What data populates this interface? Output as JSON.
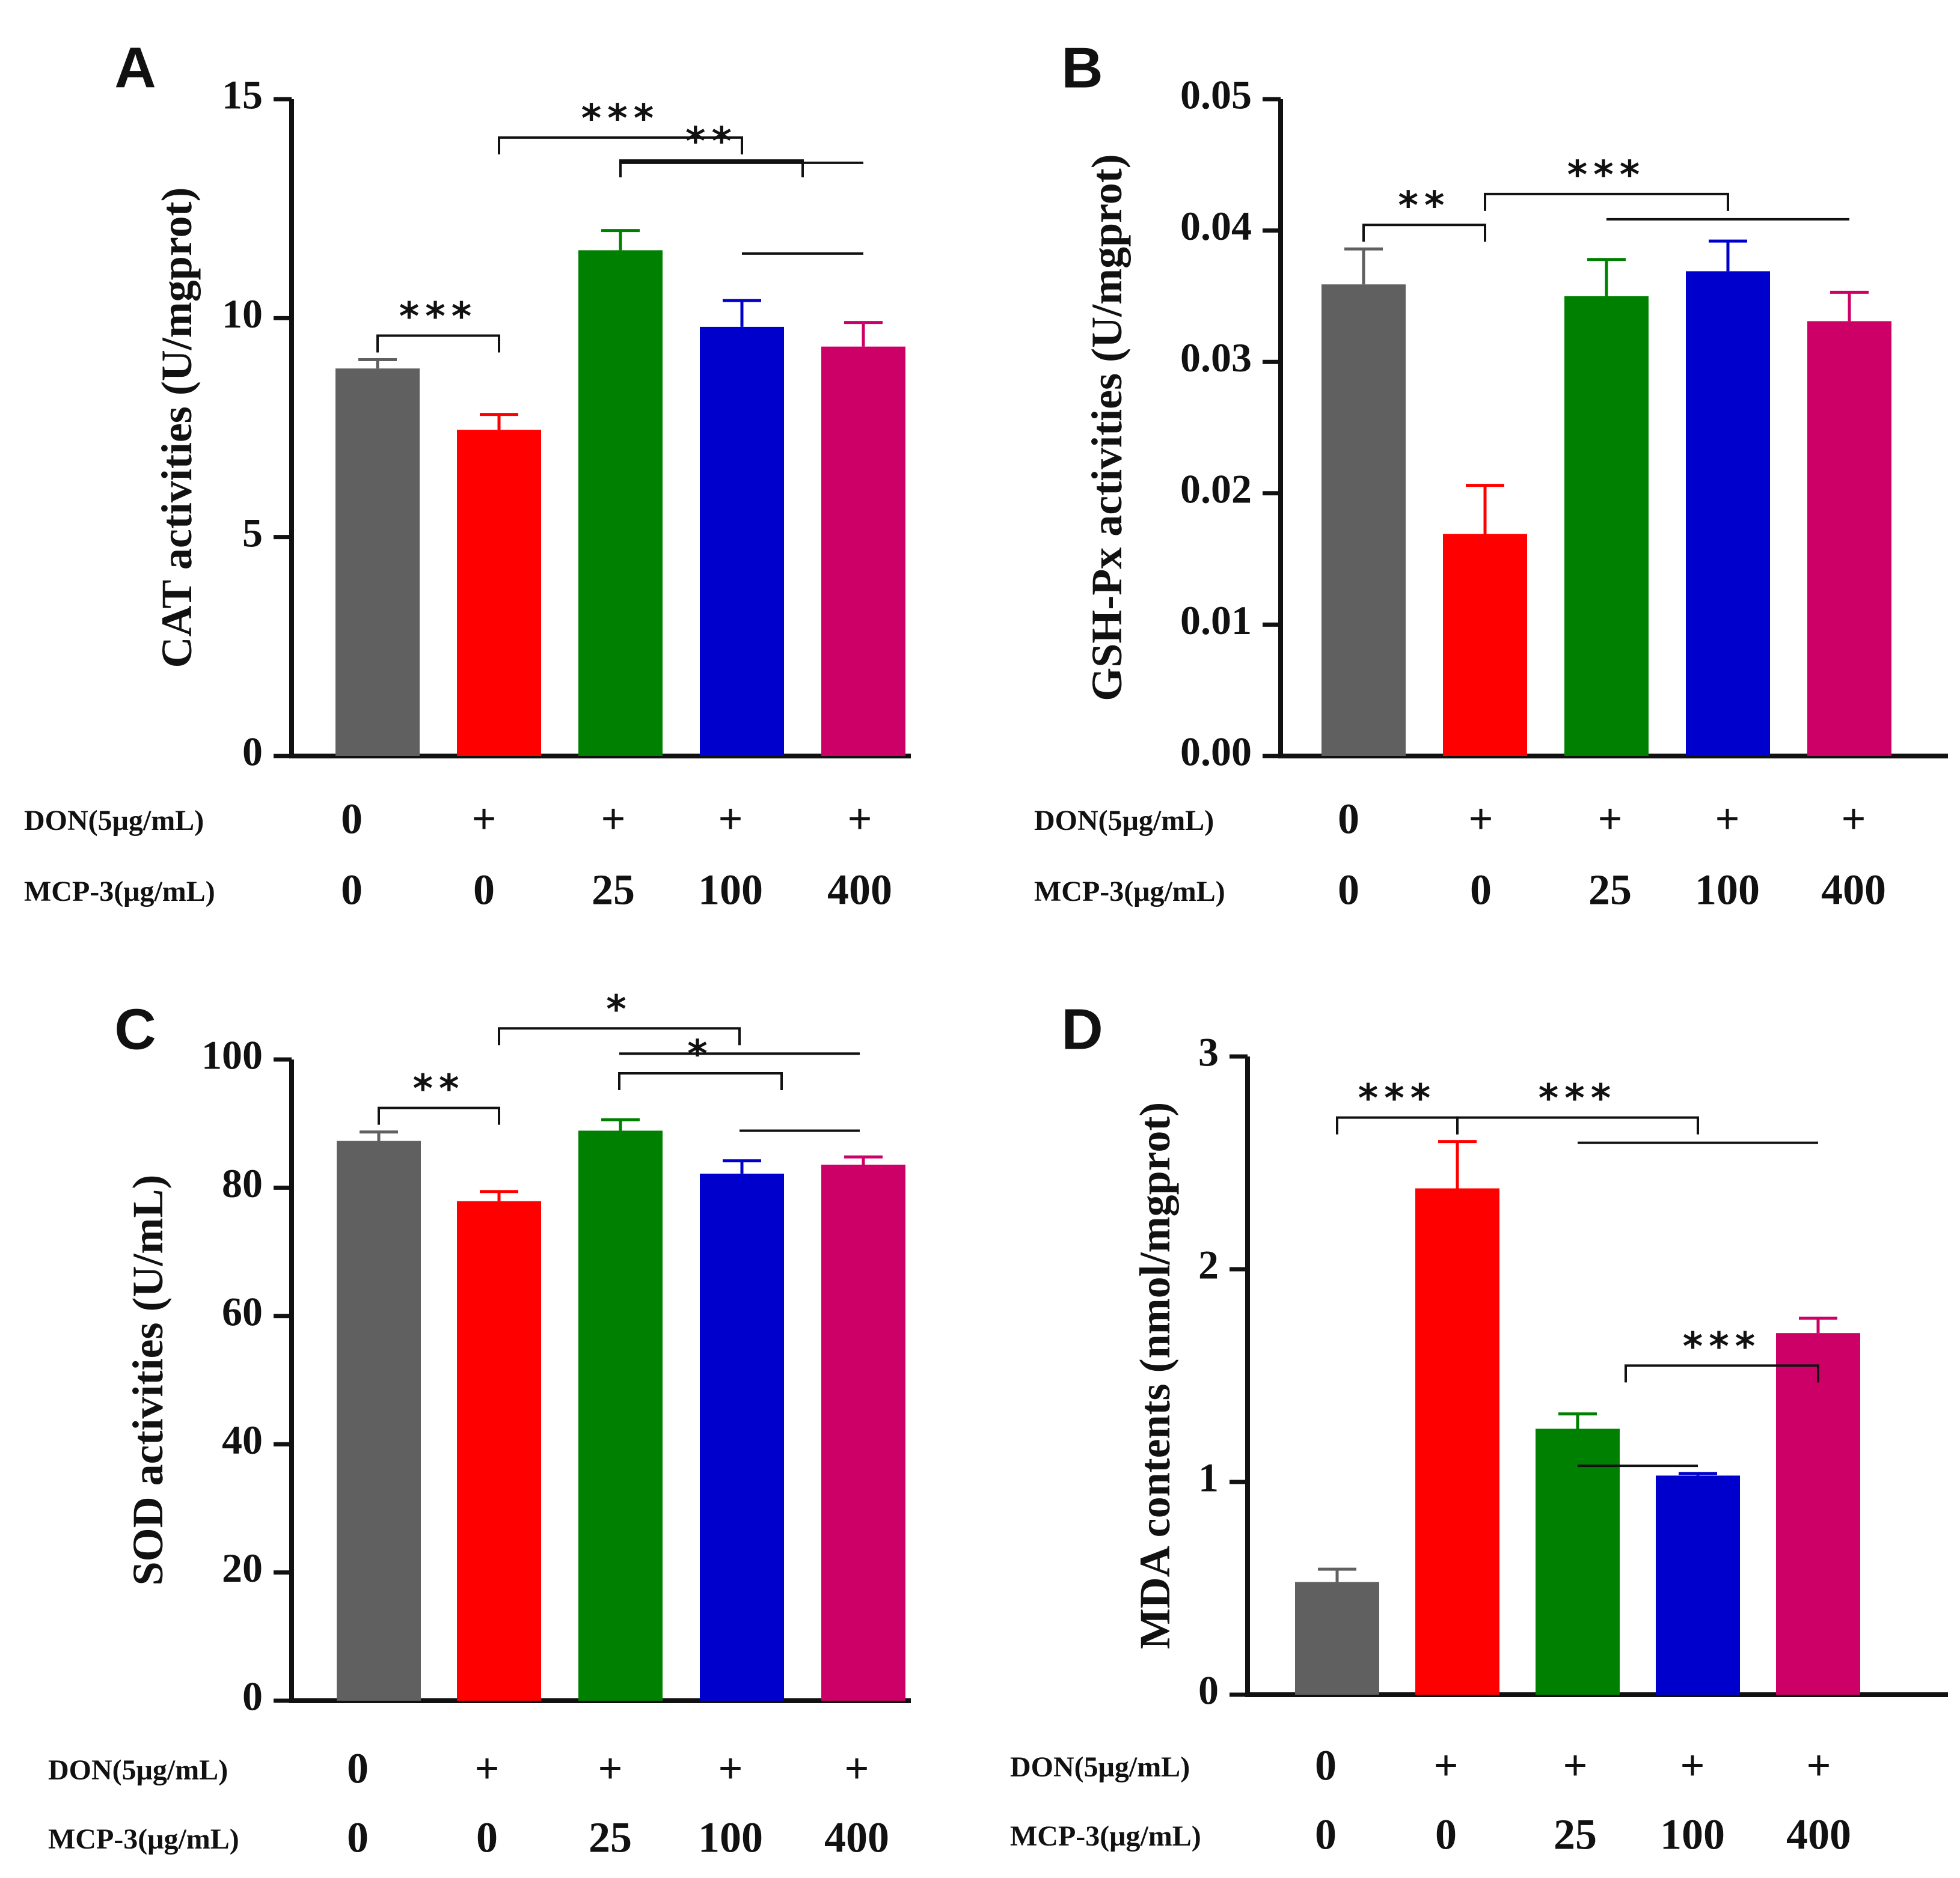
{
  "groups": {
    "don_label": "DON(5μg/mL)",
    "mcp_label": "MCP-3(μg/mL)",
    "don": [
      "0",
      "+",
      "+",
      "+",
      "+"
    ],
    "mcp": [
      "0",
      "0",
      "25",
      "100",
      "400"
    ],
    "colors": [
      "#606060",
      "#ff0000",
      "#008000",
      "#0000cc",
      "#cc0066"
    ]
  },
  "chart_data": [
    {
      "type": "bar",
      "panel": "A",
      "ylabel": "CAT activities (U/mgprot)",
      "ylim": [
        0,
        15
      ],
      "yticks": [
        "0",
        "5",
        "10",
        "15"
      ],
      "ytick_values": [
        0,
        5,
        10,
        15
      ],
      "values": [
        8.85,
        7.45,
        11.55,
        9.8,
        9.35
      ],
      "errors": [
        0.2,
        0.35,
        0.45,
        0.6,
        0.55
      ],
      "sig": [
        {
          "text": "***",
          "from": 0,
          "to": 1,
          "level": 0,
          "tail": null
        },
        {
          "text": "***",
          "from": 1,
          "to": 3,
          "level": 3,
          "tail": 4
        },
        {
          "text": "**",
          "from": 2,
          "to": 3.5,
          "level": 2,
          "tail": null
        },
        {
          "text": "",
          "from": 3,
          "to": 4,
          "level": 1,
          "tail": null,
          "plain": true
        }
      ]
    },
    {
      "type": "bar",
      "panel": "B",
      "ylabel": "GSH-Px activities (U/mgprot)",
      "ylim": [
        0,
        0.05
      ],
      "yticks": [
        "0.00",
        "0.01",
        "0.02",
        "0.03",
        "0.04",
        "0.05"
      ],
      "ytick_values": [
        0,
        0.01,
        0.02,
        0.03,
        0.04,
        0.05
      ],
      "values": [
        0.0359,
        0.0169,
        0.035,
        0.0369,
        0.0331
      ],
      "errors": [
        0.0027,
        0.0037,
        0.0028,
        0.0023,
        0.0022
      ],
      "sig": [
        {
          "text": "**",
          "from": 0,
          "to": 1,
          "level": 0,
          "tail": null
        },
        {
          "text": "***",
          "from": 1,
          "to": 3,
          "level": 1,
          "tail": 4
        }
      ]
    },
    {
      "type": "bar",
      "panel": "C",
      "ylabel": "SOD activities (U/mL)",
      "ylim": [
        0,
        100
      ],
      "yticks": [
        "0",
        "20",
        "40",
        "60",
        "80",
        "100"
      ],
      "ytick_values": [
        0,
        20,
        40,
        60,
        80,
        100
      ],
      "values": [
        87.3,
        77.9,
        88.9,
        82.2,
        83.6
      ],
      "errors": [
        1.4,
        1.5,
        1.7,
        2.0,
        1.2
      ],
      "sig": [
        {
          "text": "**",
          "from": 0,
          "to": 1,
          "level": 0,
          "tail": null
        },
        {
          "text": "*",
          "from": 1,
          "to": 3,
          "level": 3,
          "tail": 4
        },
        {
          "text": "*",
          "from": 2,
          "to": 3.35,
          "level": 1,
          "tail": null
        },
        {
          "text": "",
          "from": 3,
          "to": 4,
          "level": 0.1,
          "tail": null,
          "plain": true
        }
      ]
    },
    {
      "type": "bar",
      "panel": "D",
      "ylabel": "MDA contents (nmol/mgprot)",
      "ylim": [
        0,
        3
      ],
      "yticks": [
        "0",
        "1",
        "2",
        "3"
      ],
      "ytick_values": [
        0,
        1,
        2,
        3
      ],
      "values": [
        0.53,
        2.38,
        1.25,
        1.03,
        1.7
      ],
      "errors": [
        0.06,
        0.22,
        0.07,
        0.01,
        0.07
      ],
      "sig": [
        {
          "text": "***",
          "from": 0,
          "to": 1,
          "level": 0,
          "tail": null
        },
        {
          "text": "***",
          "from": 1,
          "to": 3,
          "level": 0,
          "tail": 4
        },
        {
          "text": "***",
          "from": 2.4,
          "to": 4,
          "level": -3.2,
          "tail": null
        },
        {
          "text": "",
          "from": 2,
          "to": 3,
          "level": -3.4,
          "tail": null,
          "plain": true
        }
      ]
    }
  ]
}
